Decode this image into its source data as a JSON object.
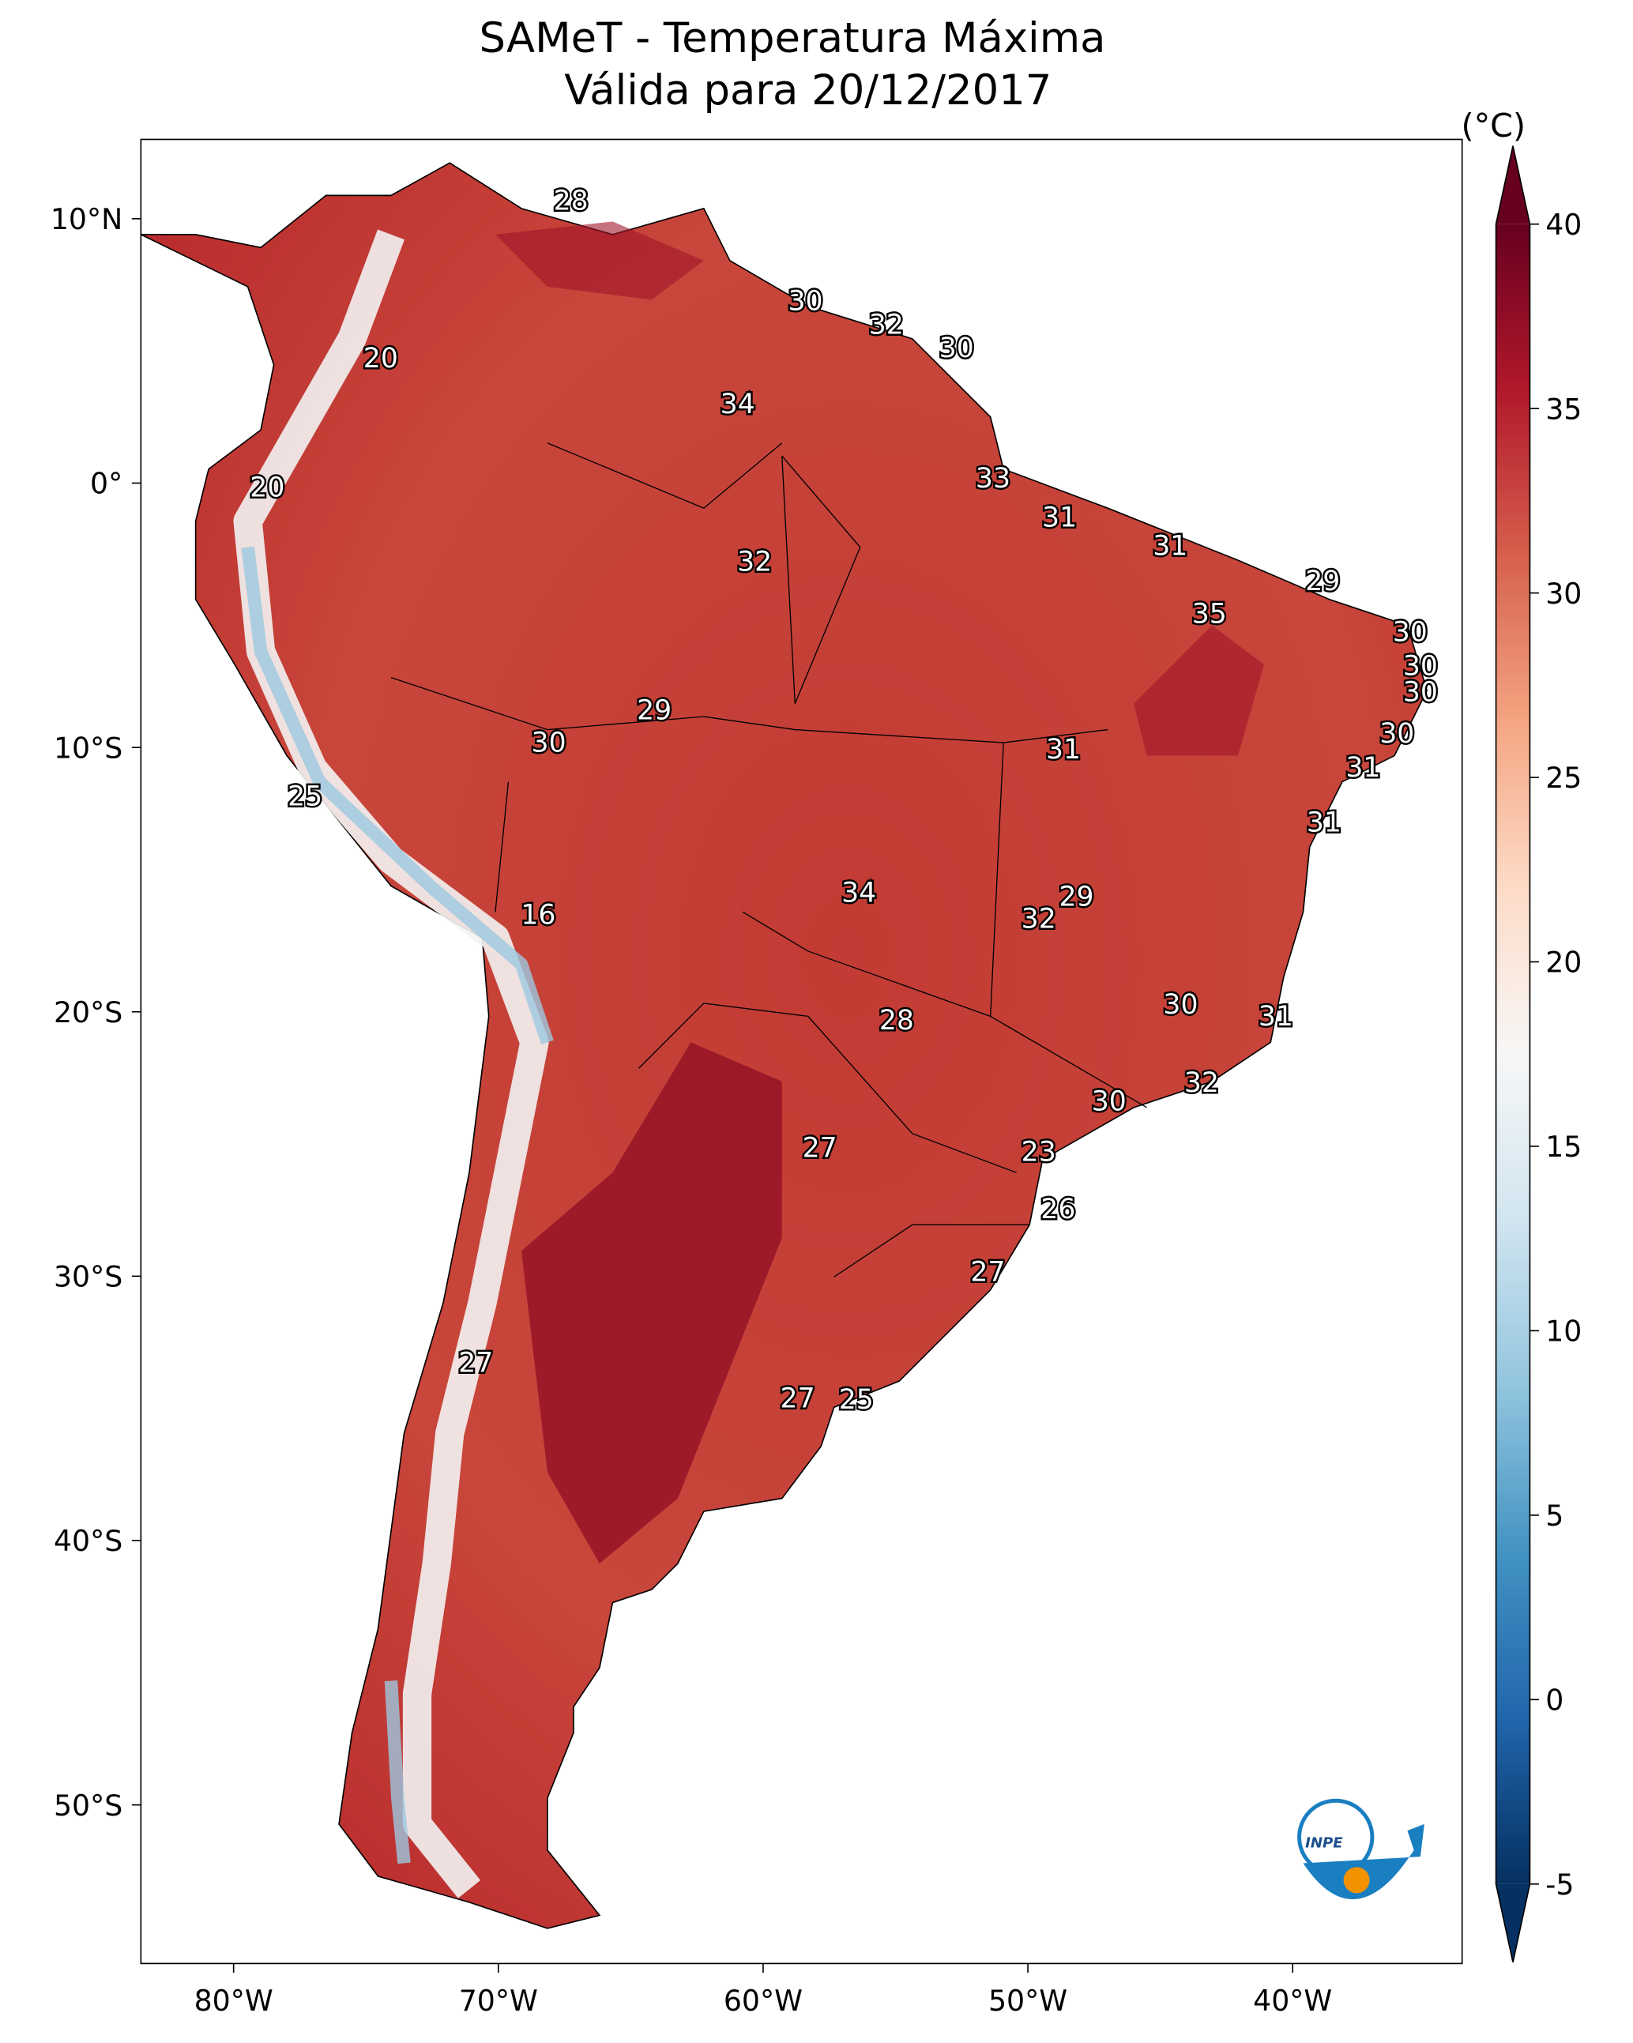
{
  "chart_data": {
    "type": "map",
    "title": "SAMeT - Temperatura Máxima",
    "subtitle": "Válida para 20/12/2017",
    "xlim": [
      -83.5,
      -33.6
    ],
    "xticks": [
      {
        "value": -80,
        "label": "80°W"
      },
      {
        "value": -70,
        "label": "70°W"
      },
      {
        "value": -60,
        "label": "60°W"
      },
      {
        "value": -50,
        "label": "50°W"
      },
      {
        "value": -40,
        "label": "40°W"
      }
    ],
    "ylim": [
      -56,
      13
    ],
    "yticks": [
      {
        "value": 10,
        "label": "10°N"
      },
      {
        "value": 0,
        "label": "0°"
      },
      {
        "value": -10,
        "label": "10°S"
      },
      {
        "value": -20,
        "label": "20°S"
      },
      {
        "value": -30,
        "label": "30°S"
      },
      {
        "value": -40,
        "label": "40°S"
      },
      {
        "value": -50,
        "label": "50°S"
      }
    ],
    "colorbar": {
      "label": "(°C)",
      "lim": [
        -5,
        40
      ],
      "ticks": [
        -5,
        0,
        5,
        10,
        15,
        20,
        25,
        30,
        35,
        40
      ],
      "colormap": "RdBu_r"
    },
    "annotations": [
      28,
      30,
      32,
      30,
      20,
      34,
      33,
      20,
      31,
      31,
      32,
      29,
      35,
      30,
      30,
      30,
      29,
      30,
      30,
      31,
      31,
      25,
      31,
      34,
      29,
      16,
      32,
      30,
      31,
      28,
      32,
      30,
      27,
      23,
      26,
      27,
      27,
      27,
      25
    ],
    "logo": "INPE"
  }
}
